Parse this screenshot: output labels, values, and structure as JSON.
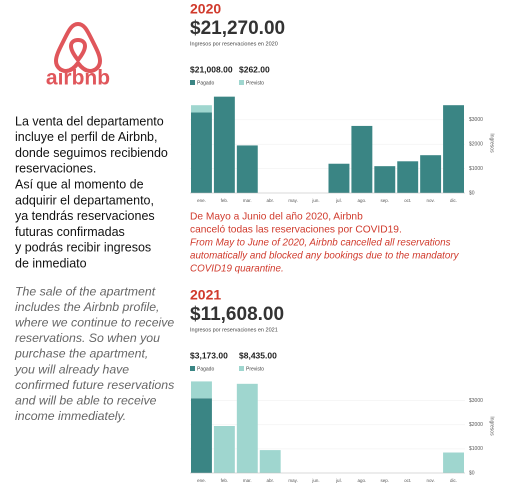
{
  "logo": {
    "wordmark": "airbnb"
  },
  "left": {
    "spanish": [
      "La venta del departamento",
      "incluye el perfil de Airbnb,",
      "donde seguimos recibiendo",
      "reservaciones.",
      "Así que al momento de",
      "adquirir el departamento,",
      "ya tendrás reservaciones",
      "futuras confirmadas",
      "y podrás recibir ingresos",
      "de inmediato"
    ],
    "english": [
      "The sale of the apartment",
      "includes the Airbnb profile,",
      "where we continue to receive",
      "reservations. So when you",
      "purchase the apartment,",
      "you will already have",
      "confirmed future reservations",
      "and will be able to receive",
      "income immediately."
    ]
  },
  "notice": {
    "es": [
      "De Mayo a Junio del año 2020, Airbnb",
      "canceló todas las reservaciones por COVID19."
    ],
    "en": [
      "From May to June of 2020, Airbnb cancelled all reservations",
      "automatically and blocked any bookings due to the mandatory",
      "COVID19 quarantine."
    ]
  },
  "chart_data": [
    {
      "type": "bar",
      "stacked": true,
      "year": "2020",
      "total": "$21,270.00",
      "subtitle": "Ingresos por reservaciones en 2020",
      "legend_totals": [
        "$21,008.00",
        "$262.00"
      ],
      "ylabel": "Ingresos",
      "categories": [
        "ene.",
        "feb.",
        "mar.",
        "abr.",
        "may.",
        "jun.",
        "jul.",
        "ago.",
        "sep.",
        "oct.",
        "nov.",
        "dic."
      ],
      "series": [
        {
          "name": "Pagado",
          "color": "#3a8584",
          "values": [
            3300,
            3950,
            1950,
            0,
            0,
            0,
            1200,
            2750,
            1100,
            1300,
            1550,
            3600
          ]
        },
        {
          "name": "Previsto",
          "color": "#9fd6cf",
          "values": [
            300,
            0,
            0,
            0,
            0,
            0,
            0,
            0,
            0,
            0,
            0,
            0
          ]
        }
      ],
      "ylim": [
        0,
        4100
      ],
      "yticks": [
        {
          "value": 0,
          "label": "$0"
        },
        {
          "value": 1000,
          "label": "$1000"
        },
        {
          "value": 2000,
          "label": "$2000"
        },
        {
          "value": 3000,
          "label": "$3000"
        }
      ],
      "grid": true
    },
    {
      "type": "bar",
      "stacked": true,
      "year": "2021",
      "total": "$11,608.00",
      "subtitle": "Ingresos por reservaciones en 2021",
      "legend_totals": [
        "$3,173.00",
        "$8,435.00"
      ],
      "ylabel": "Ingresos",
      "categories": [
        "ene.",
        "feb.",
        "mar.",
        "abr.",
        "may.",
        "jun.",
        "jul.",
        "ago.",
        "sep.",
        "oct.",
        "nov.",
        "dic."
      ],
      "series": [
        {
          "name": "Pagado",
          "color": "#3a8584",
          "values": [
            3100,
            0,
            0,
            0,
            0,
            0,
            0,
            0,
            0,
            0,
            0,
            0
          ]
        },
        {
          "name": "Previsto",
          "color": "#9fd6cf",
          "values": [
            700,
            1950,
            3700,
            950,
            0,
            0,
            0,
            0,
            0,
            0,
            0,
            850
          ]
        }
      ],
      "ylim": [
        0,
        3900
      ],
      "yticks": [
        {
          "value": 0,
          "label": "$0"
        },
        {
          "value": 1000,
          "label": "$1000"
        },
        {
          "value": 2000,
          "label": "$2000"
        },
        {
          "value": 3000,
          "label": "$3000"
        }
      ],
      "grid": true
    }
  ]
}
